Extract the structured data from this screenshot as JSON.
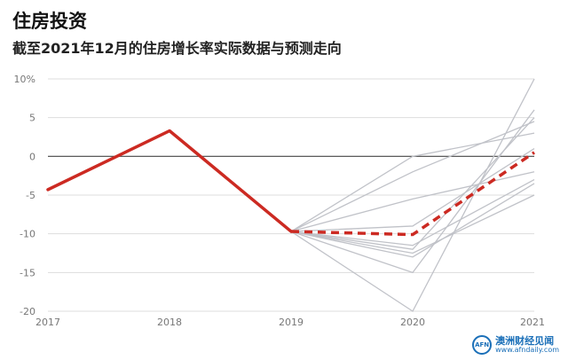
{
  "title": "住房投资",
  "subtitle": "截至2021年12月的住房增长率实际数据与预测走向",
  "watermark": {
    "logo_text": "AFN",
    "name": "澳洲财经见闻",
    "url": "www.afndaily.com"
  },
  "colors": {
    "actual": "#cc2a22",
    "forecast_mean": "#cc2a22",
    "scenarios": "#c0c2c8",
    "grid": "#dddddd",
    "zero_line": "#444444"
  },
  "chart_data": {
    "type": "line",
    "title": "",
    "xlabel": "",
    "ylabel": "",
    "categories": [
      "2017",
      "2018",
      "2019",
      "2020",
      "2021"
    ],
    "ylim": [
      -20,
      10
    ],
    "y_ticks": [
      "10%",
      "5",
      "0",
      "-5",
      "-10",
      "-15",
      "-20"
    ],
    "grid": true,
    "series": [
      {
        "style": "solid-red",
        "x": [
          "2017",
          "2018",
          "2019"
        ],
        "values": [
          -4.3,
          3.3,
          -9.7
        ]
      },
      {
        "style": "dashed-red",
        "x": [
          "2019",
          "2020",
          "2021"
        ],
        "values": [
          -9.7,
          -10.1,
          0.5
        ]
      },
      {
        "style": "gray",
        "x": [
          "2019",
          "2020",
          "2021"
        ],
        "values": [
          -9.7,
          0.0,
          3.0
        ]
      },
      {
        "style": "gray",
        "x": [
          "2019",
          "2020",
          "2021"
        ],
        "values": [
          -9.7,
          -2.0,
          4.5
        ]
      },
      {
        "style": "gray",
        "x": [
          "2019",
          "2020",
          "2021"
        ],
        "values": [
          -9.7,
          -5.5,
          -2.0
        ]
      },
      {
        "style": "gray",
        "x": [
          "2019",
          "2020",
          "2021"
        ],
        "values": [
          -9.7,
          -9.0,
          1.0
        ]
      },
      {
        "style": "gray",
        "x": [
          "2019",
          "2020",
          "2021"
        ],
        "values": [
          -9.7,
          -11.5,
          -3.0
        ]
      },
      {
        "style": "gray",
        "x": [
          "2019",
          "2020",
          "2021"
        ],
        "values": [
          -9.7,
          -12.0,
          5.0
        ]
      },
      {
        "style": "gray",
        "x": [
          "2019",
          "2020",
          "2021"
        ],
        "values": [
          -9.7,
          -12.5,
          -5.0
        ]
      },
      {
        "style": "gray",
        "x": [
          "2019",
          "2020",
          "2021"
        ],
        "values": [
          -9.7,
          -13.0,
          -3.5
        ]
      },
      {
        "style": "gray",
        "x": [
          "2019",
          "2020",
          "2021"
        ],
        "values": [
          -9.7,
          -15.0,
          6.0
        ]
      },
      {
        "style": "gray",
        "x": [
          "2019",
          "2020",
          "2021"
        ],
        "values": [
          -9.7,
          -20.0,
          10.0
        ]
      }
    ]
  }
}
